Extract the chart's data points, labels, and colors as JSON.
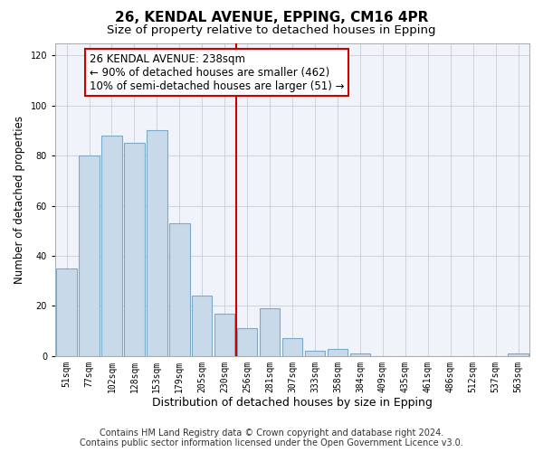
{
  "title": "26, KENDAL AVENUE, EPPING, CM16 4PR",
  "subtitle": "Size of property relative to detached houses in Epping",
  "xlabel": "Distribution of detached houses by size in Epping",
  "ylabel": "Number of detached properties",
  "bar_labels": [
    "51sqm",
    "77sqm",
    "102sqm",
    "128sqm",
    "153sqm",
    "179sqm",
    "205sqm",
    "230sqm",
    "256sqm",
    "281sqm",
    "307sqm",
    "333sqm",
    "358sqm",
    "384sqm",
    "409sqm",
    "435sqm",
    "461sqm",
    "486sqm",
    "512sqm",
    "537sqm",
    "563sqm"
  ],
  "bar_values": [
    35,
    80,
    88,
    85,
    90,
    53,
    24,
    17,
    11,
    19,
    7,
    2,
    3,
    1,
    0,
    0,
    0,
    0,
    0,
    0,
    1
  ],
  "bar_color": "#c8daea",
  "bar_edge_color": "#7aaac8",
  "vline_x_index": 7.5,
  "vline_color": "#cc0000",
  "annotation_title": "26 KENDAL AVENUE: 238sqm",
  "annotation_line1": "← 90% of detached houses are smaller (462)",
  "annotation_line2": "10% of semi-detached houses are larger (51) →",
  "annotation_box_facecolor": "#ffffff",
  "annotation_box_edgecolor": "#cc0000",
  "ylim": [
    0,
    125
  ],
  "yticks": [
    0,
    20,
    40,
    60,
    80,
    100,
    120
  ],
  "footer1": "Contains HM Land Registry data © Crown copyright and database right 2024.",
  "footer2": "Contains public sector information licensed under the Open Government Licence v3.0.",
  "fig_bg_color": "#ffffff",
  "plot_bg_color": "#f0f4fa",
  "title_fontsize": 11,
  "subtitle_fontsize": 9.5,
  "xlabel_fontsize": 9,
  "ylabel_fontsize": 8.5,
  "tick_fontsize": 7,
  "annotation_fontsize": 8.5,
  "footer_fontsize": 7
}
